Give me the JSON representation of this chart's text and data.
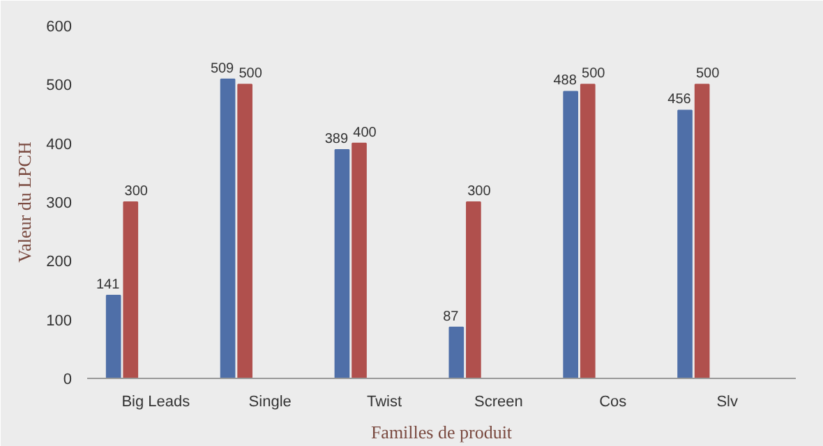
{
  "chart_data": {
    "type": "bar",
    "xlabel": "Familles de produit",
    "ylabel": "Valeur du LPCH",
    "categories": [
      "Big Leads",
      "Single",
      "Twist",
      "Screen",
      "Cos",
      "Slv"
    ],
    "series": [
      {
        "color": "#4f6fa8",
        "values": [
          141,
          509,
          389,
          87,
          488,
          456
        ]
      },
      {
        "color": "#b0504d",
        "values": [
          300,
          500,
          400,
          300,
          500,
          500
        ]
      }
    ],
    "ylim": [
      0,
      600
    ],
    "yticks": [
      0,
      100,
      200,
      300,
      400,
      500,
      600
    ],
    "data_labels": true,
    "grid": false
  }
}
